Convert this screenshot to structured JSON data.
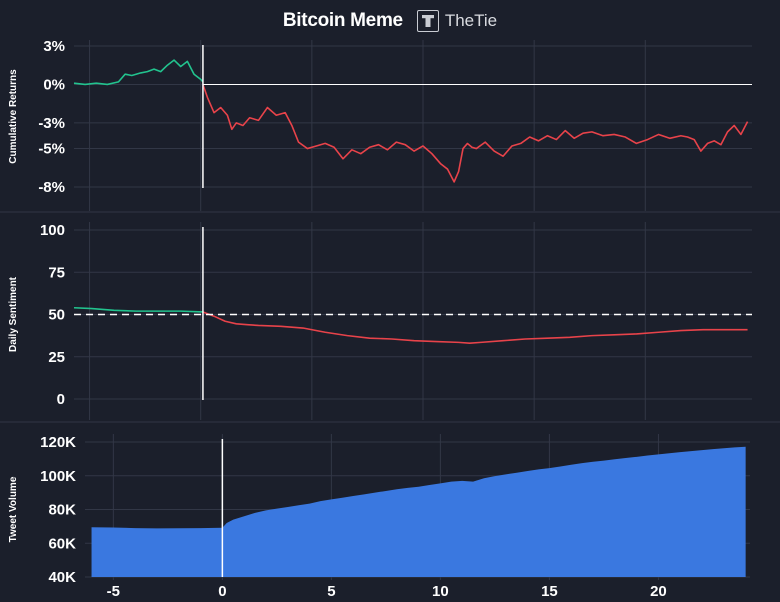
{
  "header": {
    "title": "Bitcoin Meme",
    "brand": "TheTie"
  },
  "colors": {
    "background": "#1b1f2b",
    "grid": "#323746",
    "positive": "#22c38e",
    "negative": "#e8434a",
    "area": "#3a78e0",
    "zero_line": "#ffffff"
  },
  "chart_data": [
    {
      "type": "line",
      "ylabel": "Cumulative Returns",
      "ylim": [
        -8,
        3
      ],
      "yticks": [
        3,
        0,
        -3,
        -5,
        -8
      ],
      "ytick_labels": [
        "3%",
        "0%",
        "-3%",
        "-5%",
        "-8%"
      ],
      "xlim": [
        -6.3,
        24.2
      ],
      "event_x": -0.5,
      "grid": true,
      "series": [
        {
          "color": "#22c38e",
          "x": [
            -6.3,
            -5.8,
            -5.3,
            -4.8,
            -4.3,
            -4.0,
            -3.7,
            -3.3,
            -3.0,
            -2.7,
            -2.4,
            -2.1,
            -1.8,
            -1.5,
            -1.2,
            -0.9,
            -0.6,
            -0.5
          ],
          "y": [
            0.1,
            0.0,
            0.1,
            0.0,
            0.2,
            0.8,
            0.7,
            0.9,
            1.0,
            1.2,
            1.0,
            1.5,
            1.9,
            1.4,
            1.8,
            0.8,
            0.4,
            0.2
          ]
        },
        {
          "color": "#e8434a",
          "x": [
            -0.5,
            -0.3,
            0.0,
            0.3,
            0.6,
            0.8,
            1.0,
            1.3,
            1.6,
            2.0,
            2.4,
            2.8,
            3.2,
            3.5,
            3.8,
            4.2,
            4.6,
            5.0,
            5.4,
            5.8,
            6.2,
            6.6,
            7.0,
            7.4,
            7.8,
            8.2,
            8.6,
            9.0,
            9.4,
            9.8,
            10.2,
            10.5,
            10.8,
            11.0,
            11.2,
            11.4,
            11.6,
            11.8,
            12.2,
            12.6,
            13.0,
            13.4,
            13.8,
            14.2,
            14.6,
            15.0,
            15.4,
            15.8,
            16.2,
            16.6,
            17.0,
            17.5,
            18.0,
            18.5,
            19.0,
            19.5,
            20.0,
            20.5,
            21.0,
            21.3,
            21.6,
            21.9,
            22.2,
            22.5,
            22.8,
            23.1,
            23.4,
            23.7,
            24.0
          ],
          "y": [
            0.0,
            -1.0,
            -2.2,
            -1.8,
            -2.4,
            -3.5,
            -3.0,
            -3.2,
            -2.6,
            -2.8,
            -1.8,
            -2.4,
            -2.2,
            -3.2,
            -4.5,
            -5.0,
            -4.8,
            -4.6,
            -4.9,
            -5.8,
            -5.1,
            -5.4,
            -4.9,
            -4.7,
            -5.1,
            -4.5,
            -4.7,
            -5.2,
            -4.8,
            -5.4,
            -6.2,
            -6.6,
            -7.6,
            -6.8,
            -5.0,
            -4.6,
            -4.9,
            -5.0,
            -4.5,
            -5.2,
            -5.6,
            -4.8,
            -4.6,
            -4.1,
            -4.4,
            -4.0,
            -4.3,
            -3.6,
            -4.2,
            -3.8,
            -3.7,
            -4.0,
            -3.9,
            -4.1,
            -4.6,
            -4.3,
            -3.9,
            -4.2,
            -4.0,
            -4.1,
            -4.3,
            -5.2,
            -4.6,
            -4.4,
            -4.7,
            -3.7,
            -3.2,
            -3.9,
            -2.9
          ]
        }
      ]
    },
    {
      "type": "line",
      "ylabel": "Daily Sentiment",
      "ylim": [
        0,
        100
      ],
      "yticks": [
        100,
        75,
        50,
        25,
        0
      ],
      "ytick_labels": [
        "100",
        "75",
        "50",
        "25",
        "0"
      ],
      "xlim": [
        -6.3,
        24.2
      ],
      "event_x": -0.5,
      "reference_y": 50,
      "grid": true,
      "series": [
        {
          "color": "#22c38e",
          "x": [
            -6.3,
            -5.5,
            -4.5,
            -3.5,
            -2.5,
            -1.5,
            -0.5
          ],
          "y": [
            54,
            53.5,
            52.5,
            52,
            52,
            52,
            51.5
          ]
        },
        {
          "color": "#e8434a",
          "x": [
            -0.5,
            0.0,
            0.5,
            1.0,
            1.5,
            2.0,
            3.0,
            4.0,
            5.0,
            6.0,
            7.0,
            8.0,
            9.0,
            10.0,
            11.0,
            11.5,
            12.0,
            13.0,
            14.0,
            15.0,
            16.0,
            17.0,
            18.0,
            19.0,
            20.0,
            21.0,
            22.0,
            23.0,
            24.0
          ],
          "y": [
            51.5,
            49,
            46,
            44.5,
            44,
            43.5,
            43,
            42,
            39.5,
            37.5,
            36,
            35.5,
            34.5,
            34,
            33.5,
            33,
            33.5,
            34.5,
            35.5,
            36,
            36.5,
            37.5,
            38,
            38.5,
            39.5,
            40.5,
            41,
            41,
            41
          ]
        }
      ]
    },
    {
      "type": "area",
      "ylabel": "Tweet Volume",
      "ylim": [
        40000,
        120000
      ],
      "yticks": [
        120000,
        100000,
        80000,
        60000,
        40000
      ],
      "ytick_labels": [
        "120K",
        "100K",
        "80K",
        "60K",
        "40K"
      ],
      "xlim": [
        -6.3,
        24.2
      ],
      "xticks": [
        -5,
        0,
        5,
        10,
        15,
        20
      ],
      "xtick_labels": [
        "-5",
        "0",
        "5",
        "10",
        "15",
        "20"
      ],
      "event_x": 0,
      "grid": true,
      "series": [
        {
          "color": "#3a78e0",
          "x": [
            -6.0,
            -5.0,
            -4.0,
            -3.0,
            -2.0,
            -1.0,
            0.0,
            0.2,
            0.5,
            1.0,
            1.5,
            2.0,
            2.5,
            3.0,
            3.5,
            4.0,
            4.5,
            5.0,
            5.5,
            6.0,
            6.5,
            7.0,
            7.5,
            8.0,
            8.5,
            9.0,
            9.5,
            10.0,
            10.5,
            11.0,
            11.5,
            12.0,
            12.5,
            13.0,
            13.5,
            14.0,
            14.5,
            15.0,
            15.5,
            16.0,
            16.5,
            17.0,
            17.5,
            18.0,
            18.5,
            19.0,
            19.5,
            20.0,
            20.5,
            21.0,
            21.5,
            22.0,
            22.5,
            23.0,
            23.5,
            24.0
          ],
          "y": [
            69500,
            69300,
            69000,
            68800,
            68900,
            69000,
            69200,
            72000,
            74000,
            76000,
            78000,
            79500,
            80500,
            81500,
            82500,
            83500,
            85000,
            86000,
            87000,
            88000,
            89000,
            90000,
            91000,
            92000,
            92800,
            93500,
            94500,
            95500,
            96500,
            97000,
            96500,
            98500,
            99800,
            100800,
            101800,
            102800,
            103800,
            104500,
            105500,
            106500,
            107500,
            108300,
            109000,
            109800,
            110500,
            111200,
            112000,
            112700,
            113300,
            114000,
            114600,
            115200,
            115800,
            116300,
            116800,
            117200
          ]
        }
      ]
    }
  ]
}
